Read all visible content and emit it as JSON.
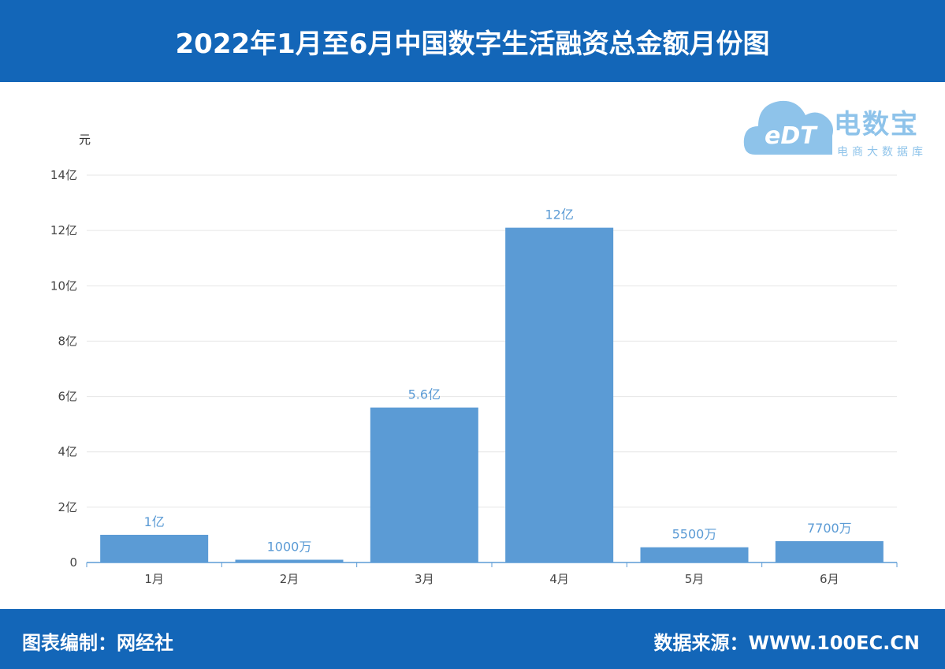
{
  "header": {
    "title": "2022年1月至6月中国数字生活融资总金额月份图"
  },
  "footer": {
    "left": "图表编制：网经社",
    "right": "数据来源：WWW.100EC.CN"
  },
  "logo": {
    "brand": "电数宝",
    "sub": "电商大数据库",
    "mark": "eDT"
  },
  "colors": {
    "header": "#1366b8",
    "bar": "#5b9bd5",
    "label": "#5b9bd5"
  },
  "chart_data": {
    "type": "bar",
    "ylabel": "元",
    "categories": [
      "1月",
      "2月",
      "3月",
      "4月",
      "5月",
      "6月"
    ],
    "values": [
      100000000,
      10000000,
      560000000,
      1210000000,
      55000000,
      77000000
    ],
    "data_labels": [
      "1亿",
      "1000万",
      "5.6亿",
      "12亿",
      "5500万",
      "7700万"
    ],
    "ylim": [
      0,
      1400000000
    ],
    "yticks": [
      {
        "value": 0,
        "label": "0"
      },
      {
        "value": 200000000,
        "label": "2亿"
      },
      {
        "value": 400000000,
        "label": "4亿"
      },
      {
        "value": 600000000,
        "label": "6亿"
      },
      {
        "value": 800000000,
        "label": "8亿"
      },
      {
        "value": 1000000000,
        "label": "10亿"
      },
      {
        "value": 1200000000,
        "label": "12亿"
      },
      {
        "value": 1400000000,
        "label": "14亿"
      }
    ],
    "grid": true,
    "legend": "none"
  }
}
